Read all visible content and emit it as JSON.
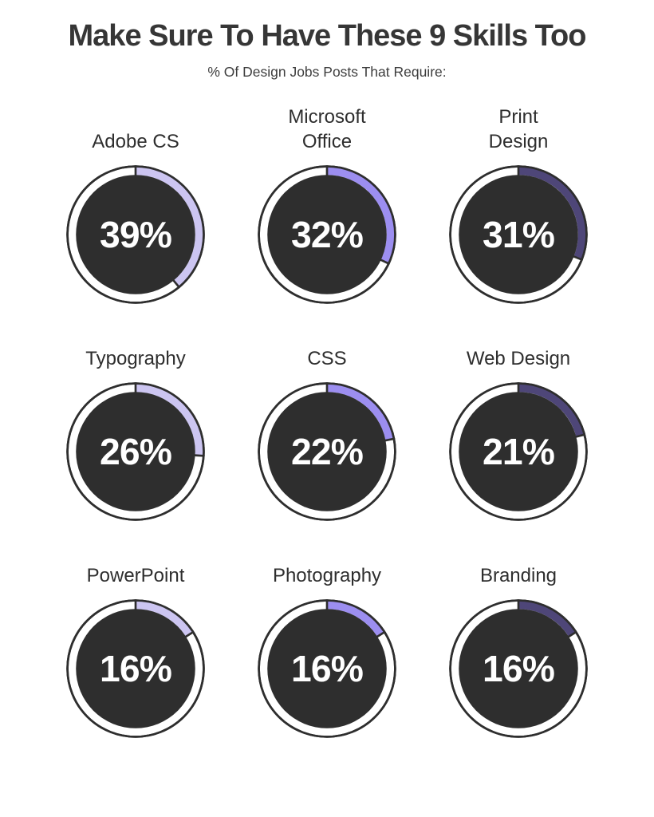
{
  "page": {
    "title": "Make Sure To Have These 9 Skills Too",
    "subtitle": "% Of Design Jobs Posts That Require:"
  },
  "colors": {
    "background": "#ffffff",
    "dark": "#2e2e2e",
    "ring_background": "#ffffff",
    "value_text": "#ffffff",
    "column_accents": [
      "#ccc5f1",
      "#9c8ef0",
      "#4e4678"
    ]
  },
  "chart_data": {
    "type": "pie",
    "variant": "donut-gauge-grid",
    "title": "Make Sure To Have These 9 Skills Too",
    "subtitle": "% Of Design Jobs Posts That Require:",
    "unit": "%",
    "value_range": [
      0,
      100
    ],
    "start_angle_deg": 0,
    "direction": "clockwise",
    "grid": {
      "rows": 3,
      "columns": 3
    },
    "legend": "none",
    "items": [
      {
        "label": "Adobe CS",
        "label_lines": [
          "Adobe CS"
        ],
        "value": 39,
        "color": "#ccc5f1"
      },
      {
        "label": "Microsoft Office",
        "label_lines": [
          "Microsoft",
          "Office"
        ],
        "value": 32,
        "color": "#9c8ef0"
      },
      {
        "label": "Print Design",
        "label_lines": [
          "Print",
          "Design"
        ],
        "value": 31,
        "color": "#4e4678"
      },
      {
        "label": "Typography",
        "label_lines": [
          "Typography"
        ],
        "value": 26,
        "color": "#ccc5f1"
      },
      {
        "label": "CSS",
        "label_lines": [
          "CSS"
        ],
        "value": 22,
        "color": "#9c8ef0"
      },
      {
        "label": "Web Design",
        "label_lines": [
          "Web Design"
        ],
        "value": 21,
        "color": "#4e4678"
      },
      {
        "label": "PowerPoint",
        "label_lines": [
          "PowerPoint"
        ],
        "value": 16,
        "color": "#ccc5f1"
      },
      {
        "label": "Photography",
        "label_lines": [
          "Photography"
        ],
        "value": 16,
        "color": "#9c8ef0"
      },
      {
        "label": "Branding",
        "label_lines": [
          "Branding"
        ],
        "value": 16,
        "color": "#4e4678"
      }
    ]
  }
}
